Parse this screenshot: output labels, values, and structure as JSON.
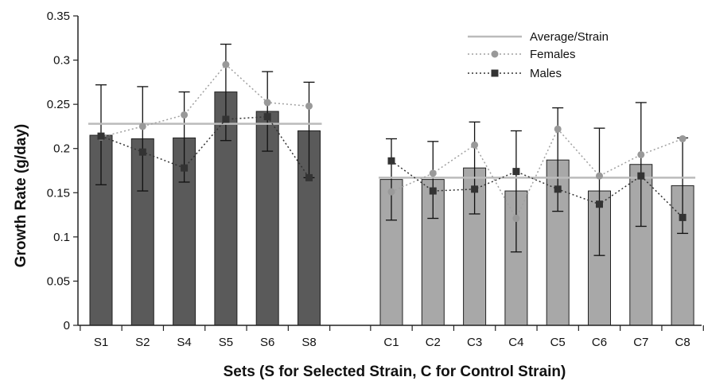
{
  "chart_data": {
    "type": "bar",
    "title": "",
    "xlabel": "Sets (S for Selected Strain, C for Control Strain)",
    "ylabel": "Growth Rate (g/day)",
    "ylim": [
      0,
      0.35
    ],
    "yticks": [
      0,
      0.05,
      0.1,
      0.15,
      0.2,
      0.25,
      0.3,
      0.35
    ],
    "ytick_labels": [
      "0",
      "0.05",
      "0.1",
      "0.15",
      "0.2",
      "0.25",
      "0.3",
      "0.35"
    ],
    "grid": false,
    "legend_position": "top-right",
    "groups": [
      {
        "name": "Selected",
        "bar_color": "#5a5a5a",
        "categories": [
          "S1",
          "S2",
          "S4",
          "S5",
          "S6",
          "S8"
        ],
        "values": [
          0.215,
          0.211,
          0.212,
          0.264,
          0.242,
          0.22
        ],
        "error_upper": [
          0.272,
          0.27,
          0.264,
          0.318,
          0.287,
          0.275
        ],
        "error_lower": [
          0.159,
          0.152,
          0.162,
          0.209,
          0.197,
          0.167
        ],
        "females": [
          0.213,
          0.225,
          0.238,
          0.295,
          0.252,
          0.248
        ],
        "males": [
          0.214,
          0.196,
          0.178,
          0.233,
          0.236,
          0.167
        ],
        "average": 0.228
      },
      {
        "name": "Control",
        "bar_color": "#a8a8a8",
        "categories": [
          "C1",
          "C2",
          "C3",
          "C4",
          "C5",
          "C6",
          "C7",
          "C8"
        ],
        "values": [
          0.165,
          0.165,
          0.178,
          0.152,
          0.187,
          0.152,
          0.182,
          0.158
        ],
        "error_upper": [
          0.211,
          0.208,
          0.23,
          0.22,
          0.246,
          0.223,
          0.252,
          0.212
        ],
        "error_lower": [
          0.119,
          0.121,
          0.126,
          0.083,
          0.129,
          0.079,
          0.112,
          0.104
        ],
        "females": [
          0.151,
          0.172,
          0.204,
          0.121,
          0.222,
          0.169,
          0.193,
          0.211
        ],
        "males": [
          0.186,
          0.152,
          0.154,
          0.174,
          0.154,
          0.137,
          0.169,
          0.122
        ],
        "average": 0.167
      }
    ],
    "legend": [
      {
        "label": "Average/Strain",
        "kind": "line",
        "color": "#bbbbbb"
      },
      {
        "label": "Females",
        "kind": "circle",
        "color": "#999999"
      },
      {
        "label": "Males",
        "kind": "square",
        "color": "#333333"
      }
    ]
  }
}
